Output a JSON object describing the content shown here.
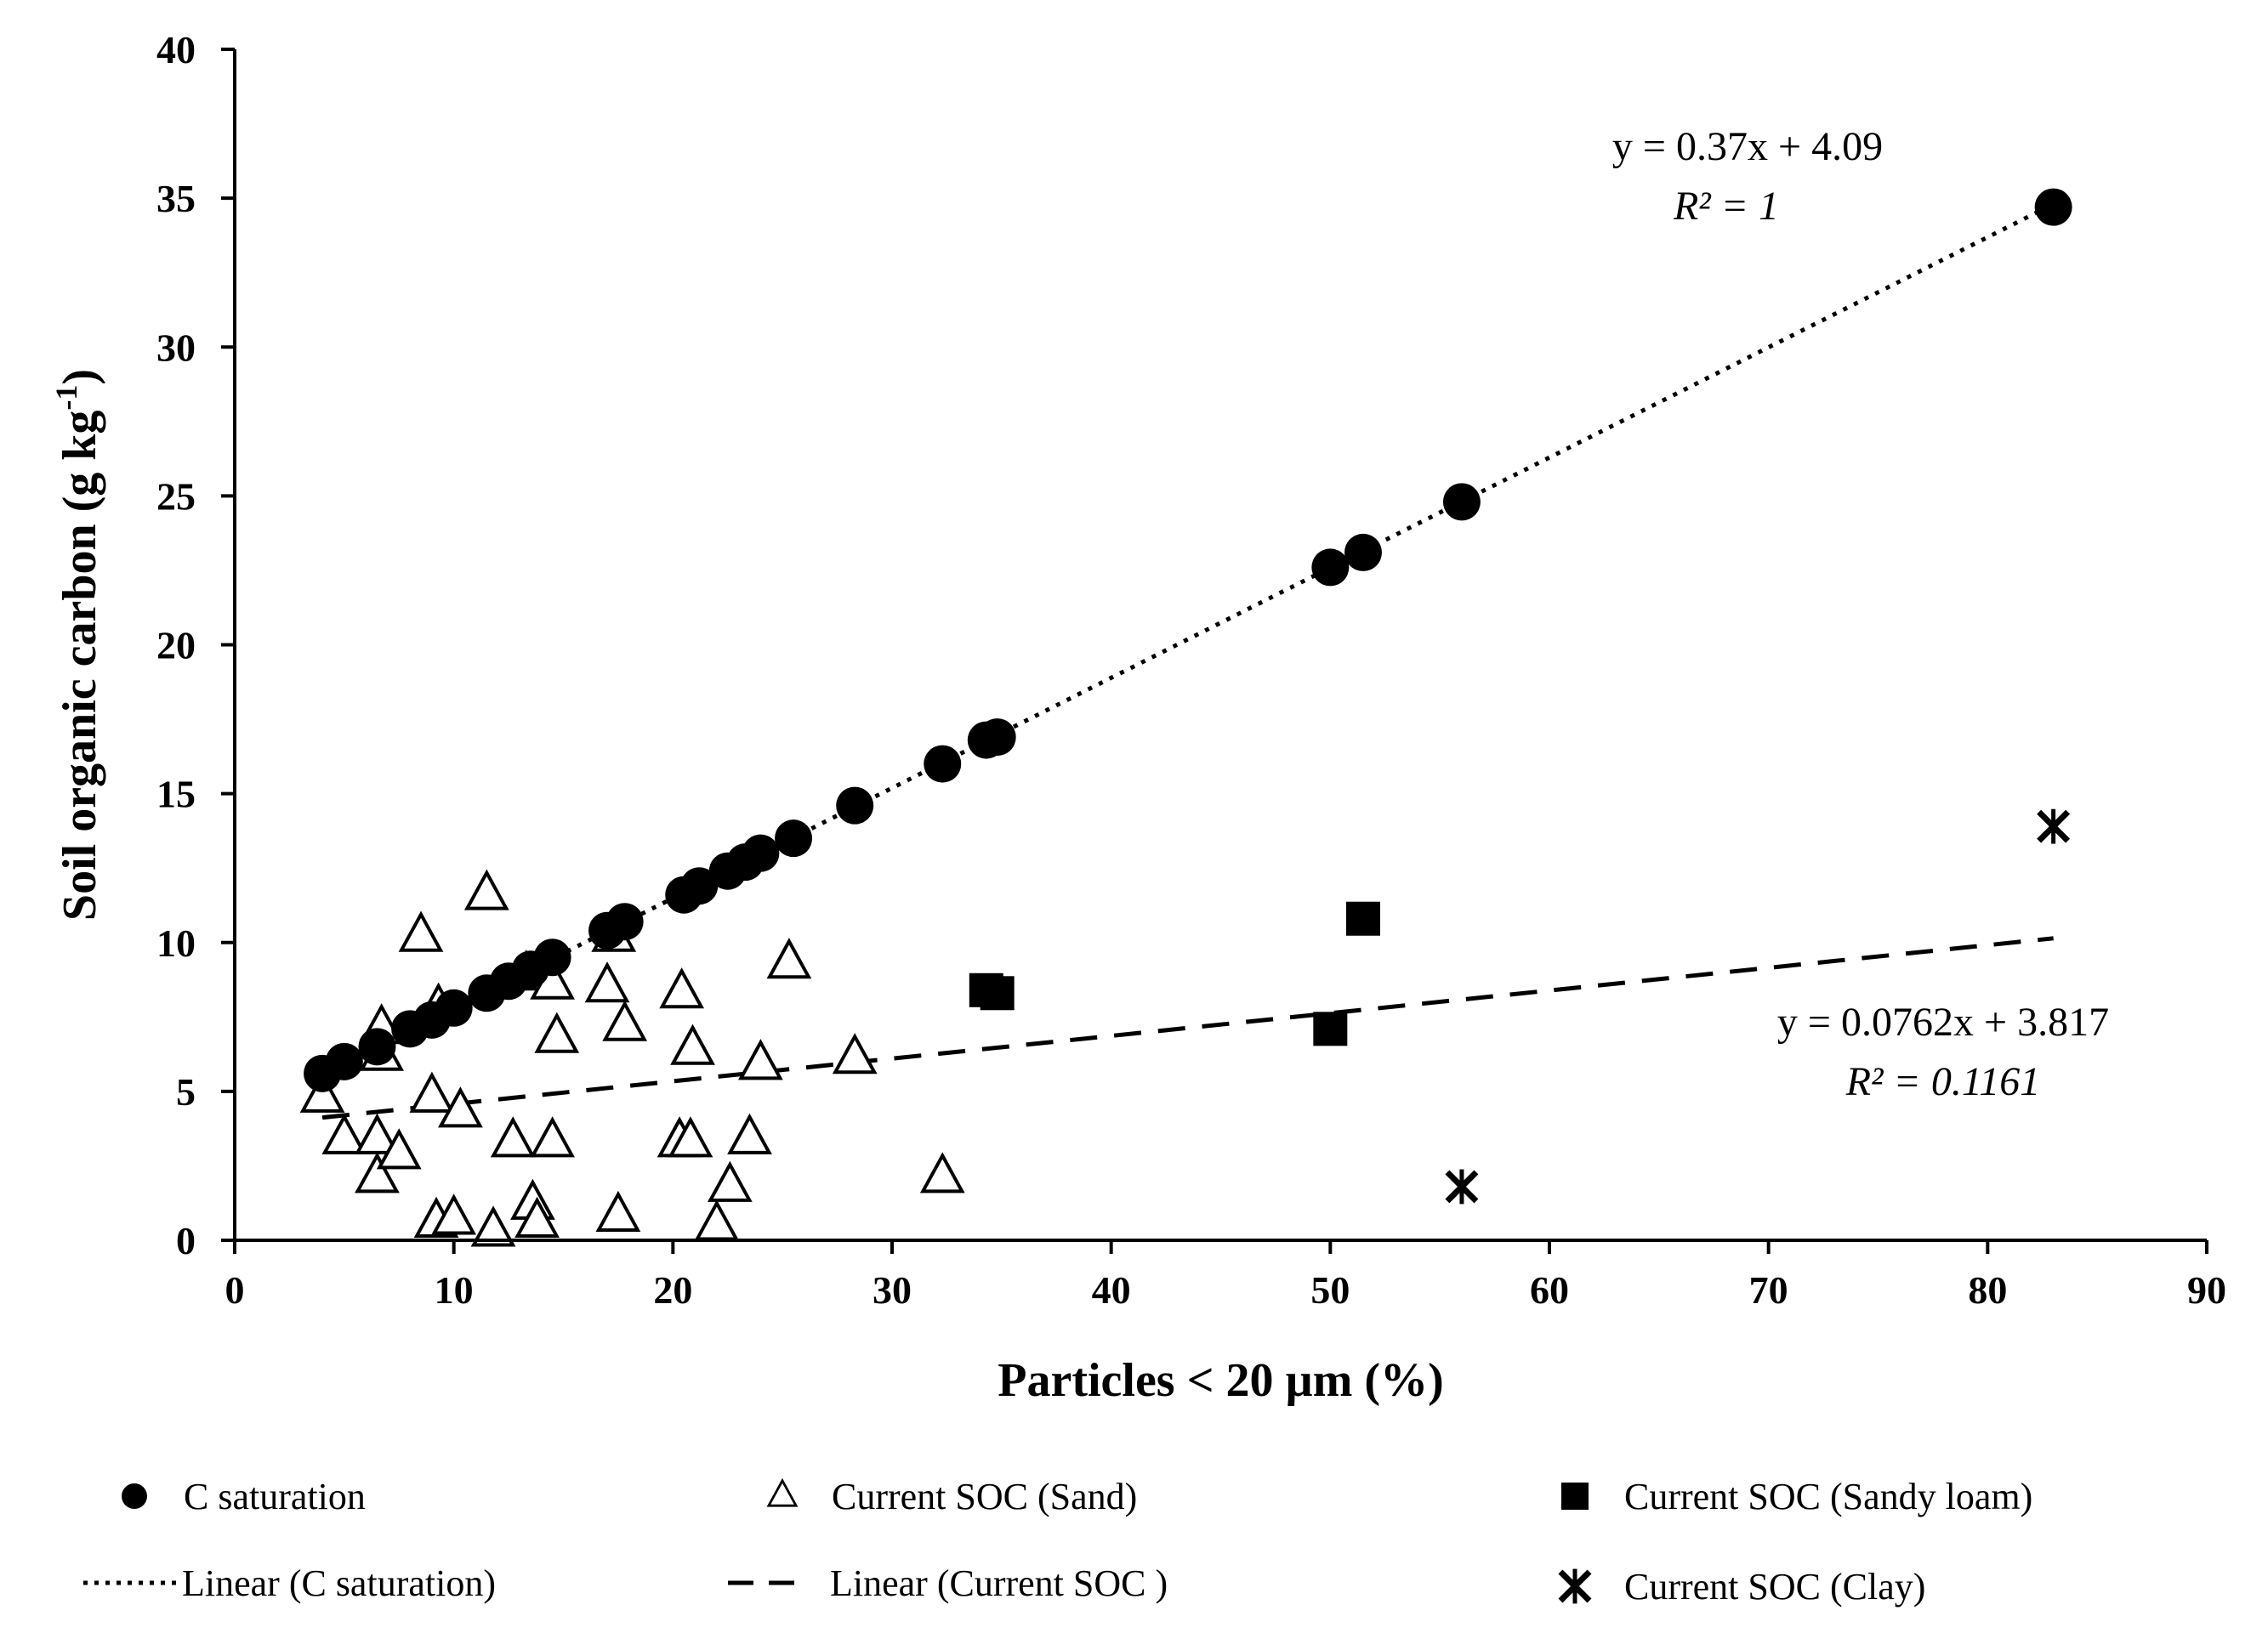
{
  "chart_data": {
    "type": "scatter",
    "title": "",
    "xlabel": "Particles < 20 µm (%)",
    "ylabel_main": "Soil organic carbon (g kg",
    "ylabel_sup": "-1",
    "ylabel_close": ")",
    "xlim": [
      0,
      90
    ],
    "ylim": [
      0,
      40
    ],
    "xticks": [
      0,
      10,
      20,
      30,
      40,
      50,
      60,
      70,
      80,
      90
    ],
    "yticks": [
      0,
      5,
      10,
      15,
      20,
      25,
      30,
      35,
      40
    ],
    "legend_position": "bottom",
    "series": [
      {
        "name": "C saturation",
        "marker": "circle",
        "color": "#000000",
        "points": [
          [
            4,
            5.6
          ],
          [
            5,
            6.0
          ],
          [
            6.5,
            6.5
          ],
          [
            8,
            7.1
          ],
          [
            9,
            7.4
          ],
          [
            10,
            7.8
          ],
          [
            11.5,
            8.3
          ],
          [
            12.5,
            8.7
          ],
          [
            13.5,
            9.1
          ],
          [
            14.5,
            9.5
          ],
          [
            17,
            10.4
          ],
          [
            17.8,
            10.7
          ],
          [
            20.5,
            11.6
          ],
          [
            21.2,
            11.9
          ],
          [
            22.5,
            12.4
          ],
          [
            23.3,
            12.7
          ],
          [
            24,
            13.0
          ],
          [
            25.5,
            13.5
          ],
          [
            28.3,
            14.6
          ],
          [
            32.3,
            16.0
          ],
          [
            34.3,
            16.8
          ],
          [
            34.8,
            16.9
          ],
          [
            50,
            22.6
          ],
          [
            51.5,
            23.1
          ],
          [
            56,
            24.8
          ],
          [
            83,
            34.7
          ]
        ]
      },
      {
        "name": "Current SOC (Sand)",
        "marker": "triangle",
        "color": "#000000",
        "points": [
          [
            4,
            4.8
          ],
          [
            5,
            3.4
          ],
          [
            6.5,
            2.1
          ],
          [
            6.5,
            3.4
          ],
          [
            6.7,
            6.2
          ],
          [
            6.7,
            7.1
          ],
          [
            7.5,
            2.9
          ],
          [
            8.5,
            10.2
          ],
          [
            9,
            4.8
          ],
          [
            9.2,
            0.6
          ],
          [
            9.3,
            7.8
          ],
          [
            10,
            0.7
          ],
          [
            10.3,
            4.3
          ],
          [
            11.5,
            11.6
          ],
          [
            11.8,
            0.3
          ],
          [
            12.7,
            3.3
          ],
          [
            13.3,
            8.9
          ],
          [
            13.6,
            1.2
          ],
          [
            13.8,
            0.6
          ],
          [
            14.5,
            3.3
          ],
          [
            14.5,
            8.6
          ],
          [
            14.7,
            6.8
          ],
          [
            17,
            8.5
          ],
          [
            17.3,
            10.2
          ],
          [
            17.5,
            0.8
          ],
          [
            17.8,
            7.2
          ],
          [
            20.3,
            3.3
          ],
          [
            20.4,
            8.3
          ],
          [
            20.8,
            3.3
          ],
          [
            20.9,
            6.4
          ],
          [
            22,
            0.5
          ],
          [
            22.6,
            1.8
          ],
          [
            23.5,
            3.4
          ],
          [
            24,
            5.9
          ],
          [
            25.3,
            9.3
          ],
          [
            28.3,
            6.1
          ],
          [
            32.3,
            2.1
          ]
        ]
      },
      {
        "name": "Current SOC (Sandy loam)",
        "marker": "square",
        "color": "#000000",
        "points": [
          [
            34.3,
            8.4
          ],
          [
            34.8,
            8.3
          ],
          [
            50,
            7.1
          ],
          [
            51.5,
            10.8
          ]
        ]
      },
      {
        "name": "Current SOC (Clay)",
        "marker": "asterisk",
        "color": "#000000",
        "points": [
          [
            56,
            1.8
          ],
          [
            83,
            13.9
          ]
        ]
      }
    ],
    "trendlines": [
      {
        "name": "Linear (C saturation)",
        "style": "dotted",
        "slope": 0.37,
        "intercept": 4.09,
        "x_range": [
          4,
          83
        ],
        "equation": "y = 0.37x + 4.09",
        "r2_label": "R² = 1"
      },
      {
        "name": "Linear (Current SOC )",
        "style": "dashed",
        "slope": 0.0762,
        "intercept": 3.817,
        "x_range": [
          4,
          83
        ],
        "equation": "y = 0.0762x + 3.817",
        "r2_label": "R² = 0.1161"
      }
    ],
    "legend": [
      {
        "label": "C saturation",
        "symbol": "circle"
      },
      {
        "label": "Current SOC (Sand)",
        "symbol": "triangle"
      },
      {
        "label": "Current SOC (Sandy loam)",
        "symbol": "square"
      },
      {
        "label": "Linear (C saturation)",
        "symbol": "dotted-line"
      },
      {
        "label": "Linear (Current SOC )",
        "symbol": "dashed-line"
      },
      {
        "label": "Current SOC (Clay)",
        "symbol": "asterisk"
      }
    ]
  }
}
